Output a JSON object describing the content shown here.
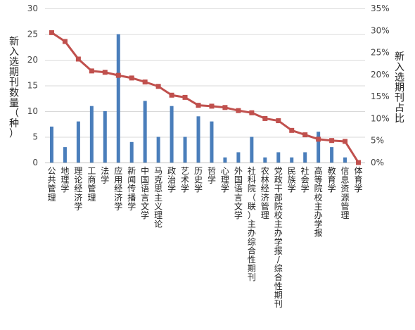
{
  "chart_data": {
    "type": "bar+line",
    "categories": [
      "公共管理",
      "地理学",
      "理论经济学",
      "工商管理",
      "法学",
      "应用经济学",
      "新闻传播学",
      "中国语言文学",
      "马克思主义理论",
      "政治学",
      "艺术学",
      "历史学",
      "哲学",
      "心理学",
      "外国语言文学",
      "社科院（联）主办综合性期刊",
      "农林经济管理",
      "党政干部院校主办学报/综合性期刊",
      "民族学",
      "社会学",
      "高等院校主办学报",
      "教育学",
      "信息资源管理",
      "体育学"
    ],
    "series": [
      {
        "axis": "left",
        "kind": "bar",
        "color": "#4a7ebb",
        "values": [
          7,
          3,
          8,
          11,
          10,
          25,
          4,
          12,
          5,
          11,
          5,
          9,
          8,
          1,
          2,
          5,
          1,
          2,
          1,
          2,
          6,
          3,
          1,
          0
        ]
      },
      {
        "axis": "right",
        "kind": "line",
        "color": "#c0504d",
        "values": [
          29.5,
          27.5,
          23.5,
          20.8,
          20.5,
          19.8,
          19.2,
          18.3,
          17.3,
          15.3,
          14.8,
          13.0,
          12.8,
          12.5,
          11.8,
          11.3,
          10.0,
          9.5,
          7.3,
          6.3,
          5.3,
          5.0,
          4.8,
          0.0
        ]
      }
    ],
    "y_left": {
      "label": "新入选期刊数量（种）",
      "min": 0,
      "max": 30,
      "ticks": [
        "0",
        "5",
        "10",
        "15",
        "20",
        "25",
        "30"
      ]
    },
    "y_right": {
      "label": "新入选期刊占比",
      "min": 0,
      "max": 35,
      "ticks": [
        "0%",
        "5%",
        "10%",
        "15%",
        "20%",
        "25%",
        "30%",
        "35%"
      ]
    },
    "grid": "horizontal"
  }
}
